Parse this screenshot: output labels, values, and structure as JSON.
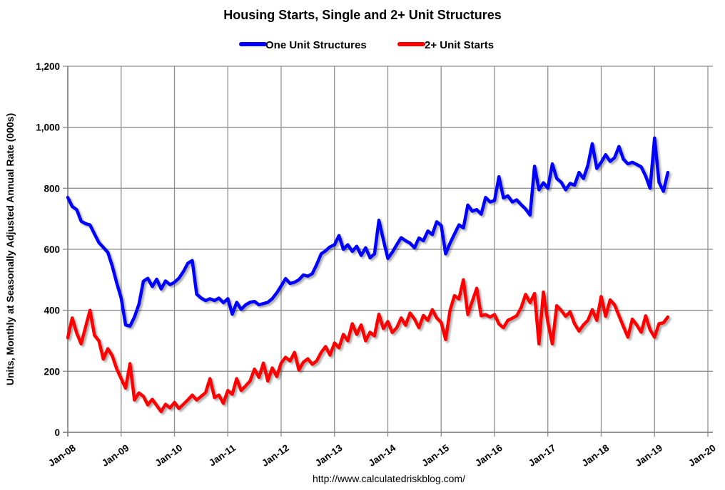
{
  "title": "Housing Starts, Single and 2+ Unit Structures",
  "footer_url": "http://www.calculatedriskblog.com/",
  "legend": [
    {
      "label": "One Unit Structures",
      "color": "#0000ff"
    },
    {
      "label": "2+ Unit Starts",
      "color": "#ff0000"
    }
  ],
  "colors": {
    "blue": "#0000ff",
    "red": "#ff0000",
    "grid": "#8f8f8f",
    "axis": "#7a7a7a",
    "text": "#000000",
    "background": "#ffffff"
  },
  "chart_data": {
    "type": "line",
    "title": "Housing Starts, Single and 2+ Unit Structures",
    "xlabel": "",
    "ylabel": "Units, Monthly at Seasonally Adjusted Annual Rate (000s)",
    "ylim": [
      0,
      1200
    ],
    "grid": true,
    "legend_position": "top",
    "ytick_values": [
      0,
      200,
      400,
      600,
      800,
      1000,
      1200
    ],
    "ytick_labels": [
      "0",
      "200",
      "400",
      "600",
      "800",
      "1,000",
      "1,200"
    ],
    "xtick_labels": [
      "Jan-08",
      "Jan-09",
      "Jan-10",
      "Jan-11",
      "Jan-12",
      "Jan-13",
      "Jan-14",
      "Jan-15",
      "Jan-16",
      "Jan-17",
      "Jan-18",
      "Jan-19",
      "Jan-20"
    ],
    "x_axis_total_months": 144,
    "months": [
      "Jan-08",
      "Feb-08",
      "Mar-08",
      "Apr-08",
      "May-08",
      "Jun-08",
      "Jul-08",
      "Aug-08",
      "Sep-08",
      "Oct-08",
      "Nov-08",
      "Dec-08",
      "Jan-09",
      "Feb-09",
      "Mar-09",
      "Apr-09",
      "May-09",
      "Jun-09",
      "Jul-09",
      "Aug-09",
      "Sep-09",
      "Oct-09",
      "Nov-09",
      "Dec-09",
      "Jan-10",
      "Feb-10",
      "Mar-10",
      "Apr-10",
      "May-10",
      "Jun-10",
      "Jul-10",
      "Aug-10",
      "Sep-10",
      "Oct-10",
      "Nov-10",
      "Dec-10",
      "Jan-11",
      "Feb-11",
      "Mar-11",
      "Apr-11",
      "May-11",
      "Jun-11",
      "Jul-11",
      "Aug-11",
      "Sep-11",
      "Oct-11",
      "Nov-11",
      "Dec-11",
      "Jan-12",
      "Feb-12",
      "Mar-12",
      "Apr-12",
      "May-12",
      "Jun-12",
      "Jul-12",
      "Aug-12",
      "Sep-12",
      "Oct-12",
      "Nov-12",
      "Dec-12",
      "Jan-13",
      "Feb-13",
      "Mar-13",
      "Apr-13",
      "May-13",
      "Jun-13",
      "Jul-13",
      "Aug-13",
      "Sep-13",
      "Oct-13",
      "Nov-13",
      "Dec-13",
      "Jan-14",
      "Feb-14",
      "Mar-14",
      "Apr-14",
      "May-14",
      "Jun-14",
      "Jul-14",
      "Aug-14",
      "Sep-14",
      "Oct-14",
      "Nov-14",
      "Dec-14",
      "Jan-15",
      "Feb-15",
      "Mar-15",
      "Apr-15",
      "May-15",
      "Jun-15",
      "Jul-15",
      "Aug-15",
      "Sep-15",
      "Oct-15",
      "Nov-15",
      "Dec-15",
      "Jan-16",
      "Feb-16",
      "Mar-16",
      "Apr-16",
      "May-16",
      "Jun-16",
      "Jul-16",
      "Aug-16",
      "Sep-16",
      "Oct-16",
      "Nov-16",
      "Dec-16",
      "Jan-17",
      "Feb-17",
      "Mar-17",
      "Apr-17",
      "May-17",
      "Jun-17",
      "Jul-17",
      "Aug-17",
      "Sep-17",
      "Oct-17",
      "Nov-17",
      "Dec-17",
      "Jan-18",
      "Feb-18",
      "Mar-18",
      "Apr-18",
      "May-18",
      "Jun-18",
      "Jul-18",
      "Aug-18",
      "Sep-18",
      "Oct-18",
      "Nov-18",
      "Dec-18",
      "Jan-19",
      "Feb-19",
      "Mar-19",
      "Apr-19"
    ],
    "series": [
      {
        "name": "One Unit Structures",
        "color": "#0000ff",
        "values": [
          770,
          740,
          730,
          692,
          684,
          680,
          650,
          622,
          606,
          590,
          545,
          490,
          440,
          352,
          348,
          378,
          420,
          495,
          505,
          478,
          502,
          470,
          496,
          484,
          492,
          505,
          527,
          554,
          563,
          453,
          440,
          432,
          438,
          432,
          440,
          425,
          438,
          387,
          426,
          403,
          418,
          426,
          429,
          418,
          422,
          426,
          438,
          457,
          480,
          504,
          488,
          492,
          500,
          516,
          512,
          520,
          550,
          585,
          595,
          608,
          615,
          645,
          600,
          615,
          593,
          610,
          580,
          605,
          572,
          585,
          695,
          630,
          570,
          590,
          615,
          638,
          628,
          620,
          605,
          637,
          628,
          660,
          648,
          690,
          678,
          585,
          620,
          650,
          680,
          670,
          745,
          725,
          730,
          715,
          770,
          755,
          760,
          838,
          768,
          775,
          755,
          762,
          746,
          732,
          712,
          872,
          795,
          818,
          800,
          880,
          832,
          820,
          795,
          816,
          810,
          852,
          832,
          875,
          946,
          865,
          885,
          910,
          888,
          900,
          937,
          895,
          880,
          885,
          878,
          870,
          840,
          800,
          965,
          820,
          790,
          852
        ]
      },
      {
        "name": "2+ Unit Starts",
        "color": "#ff0000",
        "values": [
          310,
          375,
          325,
          290,
          345,
          400,
          318,
          300,
          240,
          274,
          251,
          208,
          176,
          145,
          225,
          106,
          129,
          118,
          90,
          108,
          88,
          68,
          92,
          80,
          98,
          78,
          92,
          106,
          122,
          106,
          118,
          130,
          176,
          114,
          122,
          95,
          137,
          125,
          176,
          137,
          152,
          168,
          207,
          180,
          227,
          168,
          211,
          183,
          227,
          246,
          234,
          262,
          204,
          230,
          241,
          223,
          234,
          262,
          281,
          253,
          293,
          277,
          321,
          300,
          356,
          321,
          352,
          300,
          328,
          316,
          387,
          340,
          363,
          327,
          343,
          375,
          351,
          391,
          371,
          343,
          383,
          367,
          402,
          375,
          360,
          304,
          400,
          448,
          437,
          500,
          386,
          430,
          472,
          382,
          386,
          378,
          386,
          355,
          343,
          367,
          374,
          382,
          409,
          452,
          425,
          455,
          290,
          460,
          360,
          290,
          415,
          400,
          380,
          395,
          356,
          332,
          352,
          367,
          402,
          367,
          445,
          380,
          434,
          418,
          382,
          347,
          312,
          371,
          352,
          328,
          382,
          336,
          312,
          356,
          359,
          378
        ]
      }
    ]
  }
}
